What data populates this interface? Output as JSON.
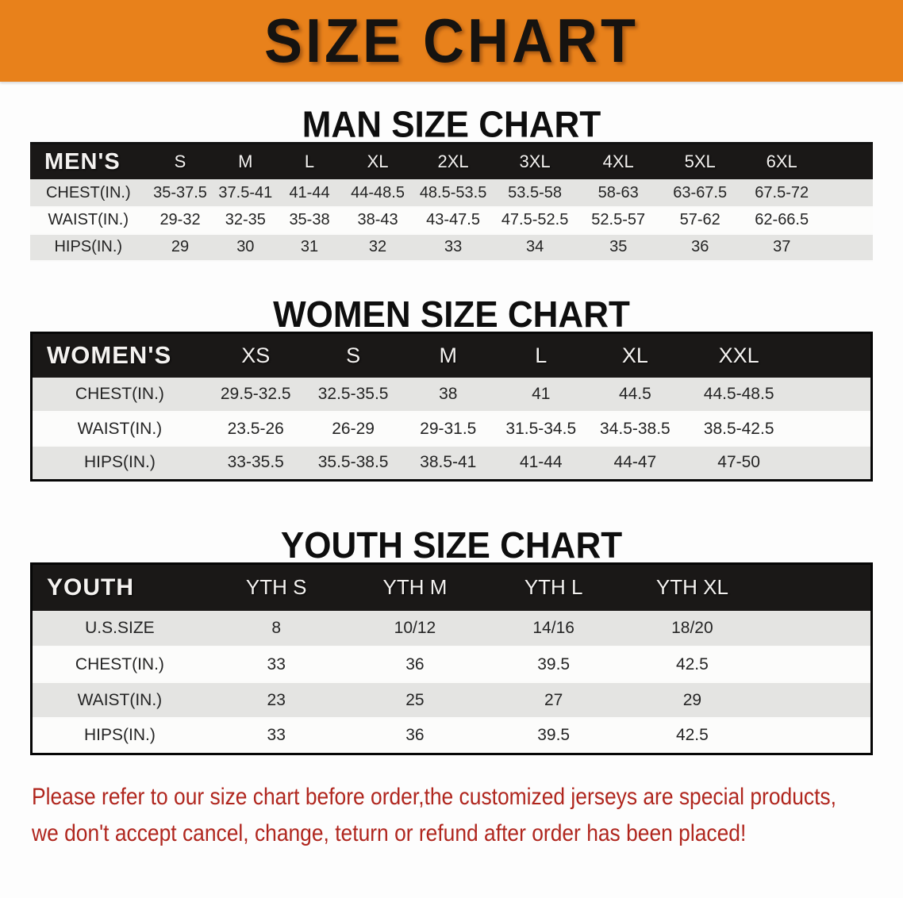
{
  "banner": {
    "title": "SIZE CHART"
  },
  "colors": {
    "banner_orange": "#E8811B",
    "table_header_black": "#1a1817",
    "row_gray": "#E4E4E2",
    "note_red": "#B0261E"
  },
  "men": {
    "heading": "MAN SIZE CHART",
    "table": {
      "header": [
        "MEN'S",
        "S",
        "M",
        "L",
        "XL",
        "2XL",
        "3XL",
        "4XL",
        "5XL",
        "6XL"
      ],
      "rows": [
        [
          "CHEST(IN.)",
          "35-37.5",
          "37.5-41",
          "41-44",
          "44-48.5",
          "48.5-53.5",
          "53.5-58",
          "58-63",
          "63-67.5",
          "67.5-72"
        ],
        [
          "WAIST(IN.)",
          "29-32",
          "32-35",
          "35-38",
          "38-43",
          "43-47.5",
          "47.5-52.5",
          "52.5-57",
          "57-62",
          "62-66.5"
        ],
        [
          "HIPS(IN.)",
          "29",
          "30",
          "31",
          "32",
          "33",
          "34",
          "35",
          "36",
          "37"
        ]
      ]
    }
  },
  "women": {
    "heading": "WOMEN SIZE CHART",
    "table": {
      "header": [
        "WOMEN'S",
        "XS",
        "S",
        "M",
        "L",
        "XL",
        "XXL"
      ],
      "rows": [
        [
          "CHEST(IN.)",
          "29.5-32.5",
          "32.5-35.5",
          "38",
          "41",
          "44.5",
          "44.5-48.5"
        ],
        [
          "WAIST(IN.)",
          "23.5-26",
          "26-29",
          "29-31.5",
          "31.5-34.5",
          "34.5-38.5",
          "38.5-42.5"
        ],
        [
          "HIPS(IN.)",
          "33-35.5",
          "35.5-38.5",
          "38.5-41",
          "41-44",
          "44-47",
          "47-50"
        ]
      ]
    }
  },
  "youth": {
    "heading": "YOUTH SIZE CHART",
    "table": {
      "header": [
        "YOUTH",
        "YTH S",
        "YTH M",
        "YTH L",
        "YTH XL"
      ],
      "rows": [
        [
          "U.S.SIZE",
          "8",
          "10/12",
          "14/16",
          "18/20"
        ],
        [
          "CHEST(IN.)",
          "33",
          "36",
          "39.5",
          "42.5"
        ],
        [
          "WAIST(IN.)",
          "23",
          "25",
          "27",
          "29"
        ],
        [
          "HIPS(IN.)",
          "33",
          "36",
          "39.5",
          "42.5"
        ]
      ]
    }
  },
  "note": {
    "line1": "Please refer to our size chart before order,the customized jerseys are special products,",
    "line2": "we don't accept cancel, change, teturn or refund after order has been placed!"
  }
}
